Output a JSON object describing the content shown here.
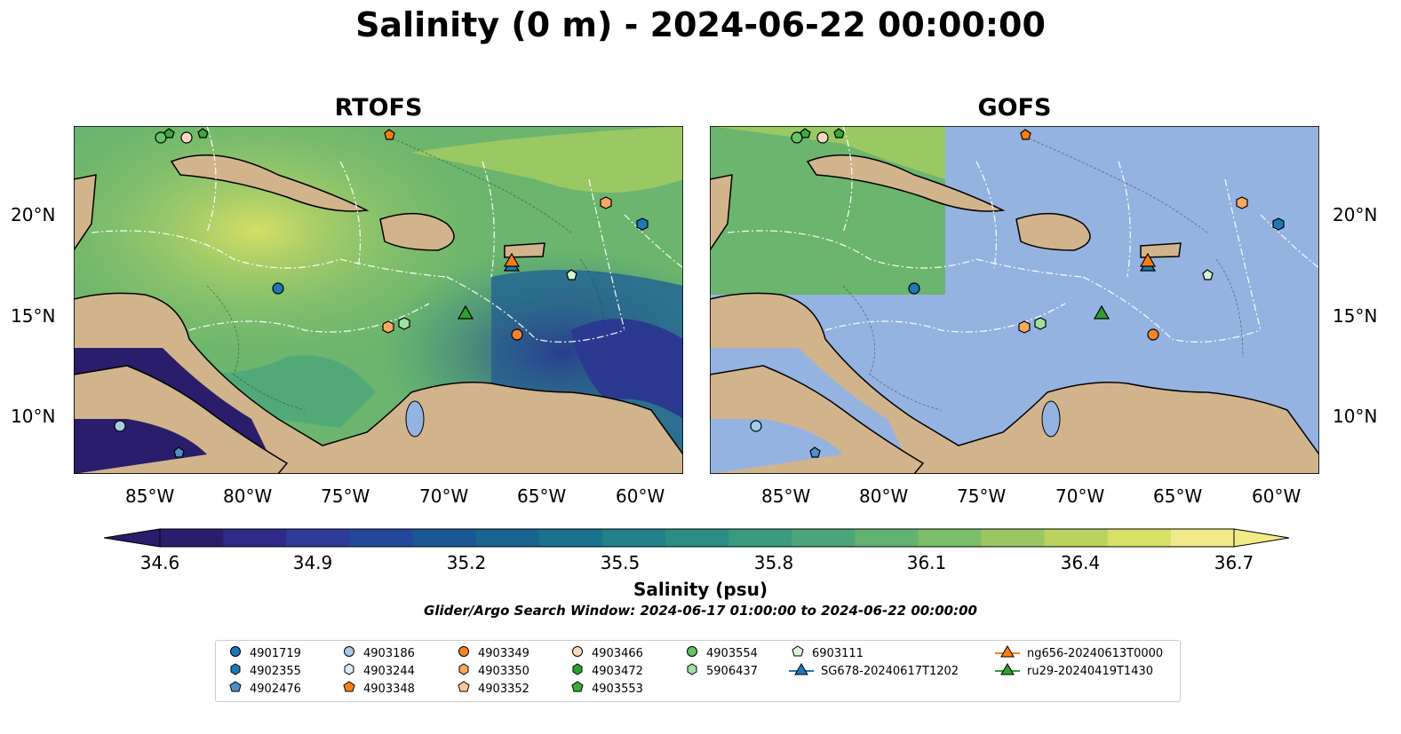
{
  "title": "Salinity (0 m) - 2024-06-22 00:00:00",
  "panels": [
    {
      "name": "RTOFS"
    },
    {
      "name": "GOFS"
    }
  ],
  "lat_labels": [
    "20°N",
    "15°N",
    "10°N"
  ],
  "lon_labels": [
    "85°W",
    "80°W",
    "75°W",
    "70°W",
    "65°W",
    "60°W"
  ],
  "colorbar": {
    "ticks": [
      "34.6",
      "34.9",
      "35.2",
      "35.5",
      "35.8",
      "36.1",
      "36.4",
      "36.7"
    ],
    "label": "Salinity (psu)",
    "colors": [
      "#2a1d6b",
      "#2e2a87",
      "#2d3b99",
      "#23489b",
      "#1a5795",
      "#18658f",
      "#1b728c",
      "#228088",
      "#2b8d84",
      "#399a7f",
      "#4ca67a",
      "#63b272",
      "#7cbd69",
      "#99c862",
      "#b8d45e",
      "#d8e067",
      "#f2ea86"
    ]
  },
  "search_window": "Glider/Argo Search Window: 2024-06-17 01:00:00 to 2024-06-22 00:00:00",
  "legend": [
    {
      "label": "4901719",
      "marker": "circle",
      "color": "#1f77b4"
    },
    {
      "label": "4902355",
      "marker": "hexagon",
      "color": "#1f77b4"
    },
    {
      "label": "4902476",
      "marker": "pentagon",
      "color": "#4f8fc6"
    },
    {
      "label": "4903186",
      "marker": "circle",
      "color": "#a6cbe6"
    },
    {
      "label": "4903244",
      "marker": "hexagon",
      "color": "#d6eaf8"
    },
    {
      "label": "4903348",
      "marker": "pentagon",
      "color": "#ff7f0e"
    },
    {
      "label": "4903349",
      "marker": "circle",
      "color": "#f5842a"
    },
    {
      "label": "4903350",
      "marker": "hexagon",
      "color": "#f9a860"
    },
    {
      "label": "4903352",
      "marker": "pentagon",
      "color": "#fcc89a"
    },
    {
      "label": "4903466",
      "marker": "circle",
      "color": "#fdd9c0"
    },
    {
      "label": "4903472",
      "marker": "hexagon",
      "color": "#2ca02c"
    },
    {
      "label": "4903553",
      "marker": "pentagon",
      "color": "#3aab3a"
    },
    {
      "label": "4903554",
      "marker": "circle",
      "color": "#66c266"
    },
    {
      "label": "5906437",
      "marker": "hexagon",
      "color": "#9fe09f"
    },
    {
      "label": "6903111",
      "marker": "pentagon",
      "color": "#d6f5d6"
    },
    {
      "label": "SG678-20240617T1202",
      "marker": "triangle-line",
      "color": "#1f77b4"
    },
    {
      "label": "ng656-20240613T0000",
      "marker": "triangle-line",
      "color": "#ff7f0e"
    },
    {
      "label": "ru29-20240419T1430",
      "marker": "triangle-line",
      "color": "#2ca02c"
    }
  ],
  "colors": {
    "land": "#d2b48c",
    "gofs_ocean": "#95b3e1",
    "lakes": "#a9c4e6"
  }
}
